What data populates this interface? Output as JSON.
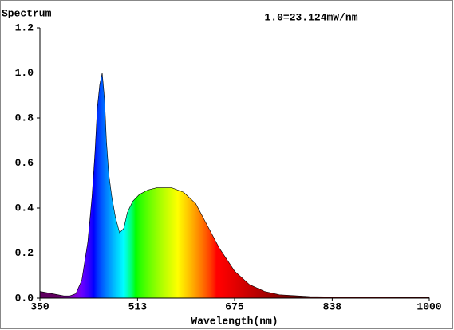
{
  "chart_data": {
    "type": "area",
    "title": "Spectrum",
    "annotation": "1.0=23.124mW/nm",
    "x_label": "Wavelength(nm)",
    "x": [
      350,
      370,
      390,
      400,
      410,
      420,
      430,
      437,
      442,
      446,
      450,
      454,
      458,
      461,
      465,
      470,
      476,
      483,
      490,
      496,
      505,
      516,
      530,
      545,
      556,
      570,
      590,
      610,
      630,
      650,
      675,
      700,
      725,
      750,
      800,
      850,
      900,
      950,
      1000
    ],
    "values": [
      0.03,
      0.02,
      0.01,
      0.01,
      0.02,
      0.08,
      0.25,
      0.45,
      0.65,
      0.85,
      0.95,
      1.0,
      0.88,
      0.7,
      0.55,
      0.45,
      0.36,
      0.29,
      0.31,
      0.38,
      0.43,
      0.46,
      0.48,
      0.49,
      0.49,
      0.49,
      0.47,
      0.42,
      0.32,
      0.22,
      0.12,
      0.06,
      0.03,
      0.015,
      0.007,
      0.005,
      0.005,
      0.004,
      0.004
    ],
    "xlim": [
      350,
      1000
    ],
    "xticks": [
      350,
      513,
      675,
      838,
      1000
    ],
    "ylim": [
      0,
      1.2
    ],
    "yticks": [
      {
        "value": 0,
        "label": "0.0"
      },
      0.2,
      0.4,
      0.6,
      0.8,
      {
        "value": 1,
        "label": "1.0"
      },
      1.2
    ]
  }
}
